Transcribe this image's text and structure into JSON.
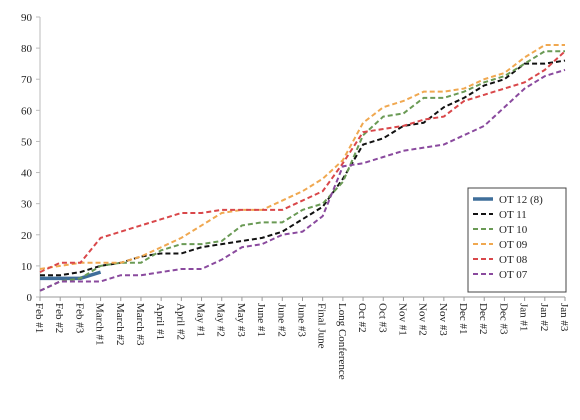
{
  "chart_data": {
    "type": "line",
    "categories": [
      "Feb #1",
      "Feb #2",
      "Feb #3",
      "March #1",
      "March #2",
      "March #3",
      "April #1",
      "April #2",
      "May #1",
      "May #2",
      "May #3",
      "June #1",
      "June #2",
      "June #3",
      "Final June",
      "Long Conference",
      "Oct #2",
      "Oct #3",
      "Nov #1",
      "Nov #2",
      "Nov #3",
      "Dec #1",
      "Dec #2",
      "Dec #3",
      "Jan #1",
      "Jan #2",
      "Jan #3"
    ],
    "series": [
      {
        "name": "OT 12 (8)",
        "color": "#3f6e9a",
        "dashed": false,
        "values": [
          6,
          6,
          6,
          8,
          null,
          null,
          null,
          null,
          null,
          null,
          null,
          null,
          null,
          null,
          null,
          null,
          null,
          null,
          null,
          null,
          null,
          null,
          null,
          null,
          null,
          null,
          null
        ]
      },
      {
        "name": "OT 11",
        "color": "#111111",
        "dashed": true,
        "values": [
          7,
          7,
          8,
          10,
          11,
          13,
          14,
          14,
          16,
          17,
          18,
          19,
          21,
          25,
          29,
          38,
          49,
          51,
          55,
          56,
          61,
          64,
          68,
          70,
          75,
          75,
          76
        ]
      },
      {
        "name": "OT 10",
        "color": "#6a9a55",
        "dashed": true,
        "values": [
          2,
          5,
          6,
          10,
          11,
          11,
          15,
          17,
          17,
          18,
          23,
          24,
          24,
          28,
          30,
          37,
          52,
          58,
          59,
          64,
          64,
          66,
          69,
          71,
          75,
          79,
          79
        ]
      },
      {
        "name": "OT 09",
        "color": "#f0a850",
        "dashed": true,
        "values": [
          9,
          10,
          11,
          11,
          11,
          13,
          16,
          19,
          23,
          27,
          28,
          28,
          31,
          34,
          38,
          44,
          56,
          61,
          63,
          66,
          66,
          67,
          70,
          72,
          77,
          81,
          81
        ]
      },
      {
        "name": "OT 08",
        "color": "#d9474a",
        "dashed": true,
        "values": [
          8,
          11,
          11,
          19,
          21,
          23,
          25,
          27,
          27,
          28,
          28,
          28,
          28,
          31,
          34,
          43,
          53,
          54,
          55,
          57,
          58,
          63,
          65,
          67,
          69,
          73,
          79
        ]
      },
      {
        "name": "OT 07",
        "color": "#8a4a9e",
        "dashed": true,
        "values": [
          2,
          5,
          5,
          5,
          7,
          7,
          8,
          9,
          9,
          12,
          16,
          17,
          20,
          21,
          26,
          42,
          43,
          45,
          47,
          48,
          49,
          52,
          55,
          61,
          67,
          71,
          73
        ]
      }
    ],
    "ylim": [
      0,
      90
    ],
    "yticks": [
      0,
      10,
      20,
      30,
      40,
      50,
      60,
      70,
      80,
      90
    ],
    "legend": "lower right"
  }
}
